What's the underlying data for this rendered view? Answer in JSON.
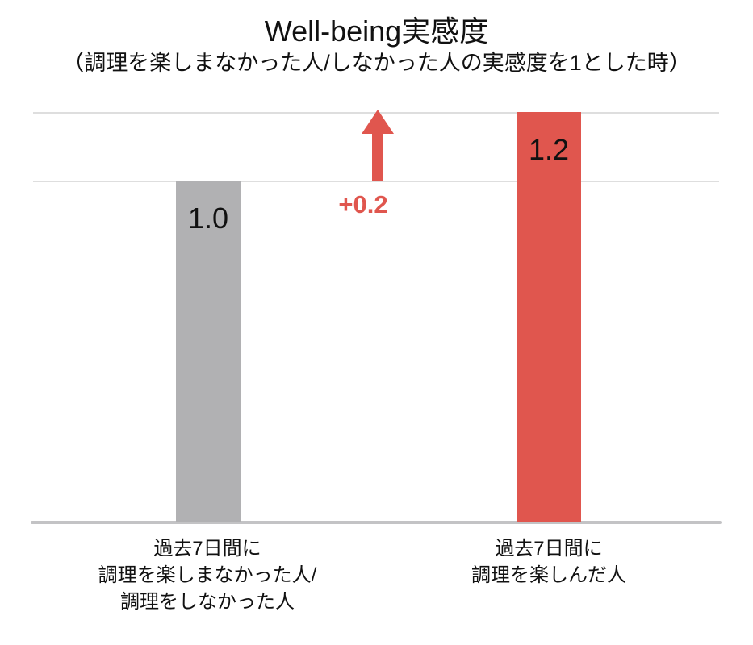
{
  "chart_data": {
    "type": "bar",
    "title": "Well-being実感度",
    "subtitle": "（調理を楽しまなかった人/しなかった人の実感度を1とした時）",
    "categories": [
      "過去7日間に\n調理を楽しまなかった人/\n調理をしなかった人",
      "過去7日間に\n調理を楽しんだ人"
    ],
    "values": [
      1.0,
      1.2
    ],
    "value_labels": [
      "1.0",
      "1.2"
    ],
    "bar_colors": [
      "#b1b1b3",
      "#e0564e"
    ],
    "annotation": {
      "text": "+0.2",
      "color": "#e0564e"
    },
    "gridlines": [
      1.0,
      1.2
    ],
    "gridline_color": "#dedede",
    "baseline_color": "#c3c3c5",
    "ylim": [
      0,
      1.27
    ],
    "xlabel": "",
    "ylabel": "",
    "legend": "none"
  }
}
